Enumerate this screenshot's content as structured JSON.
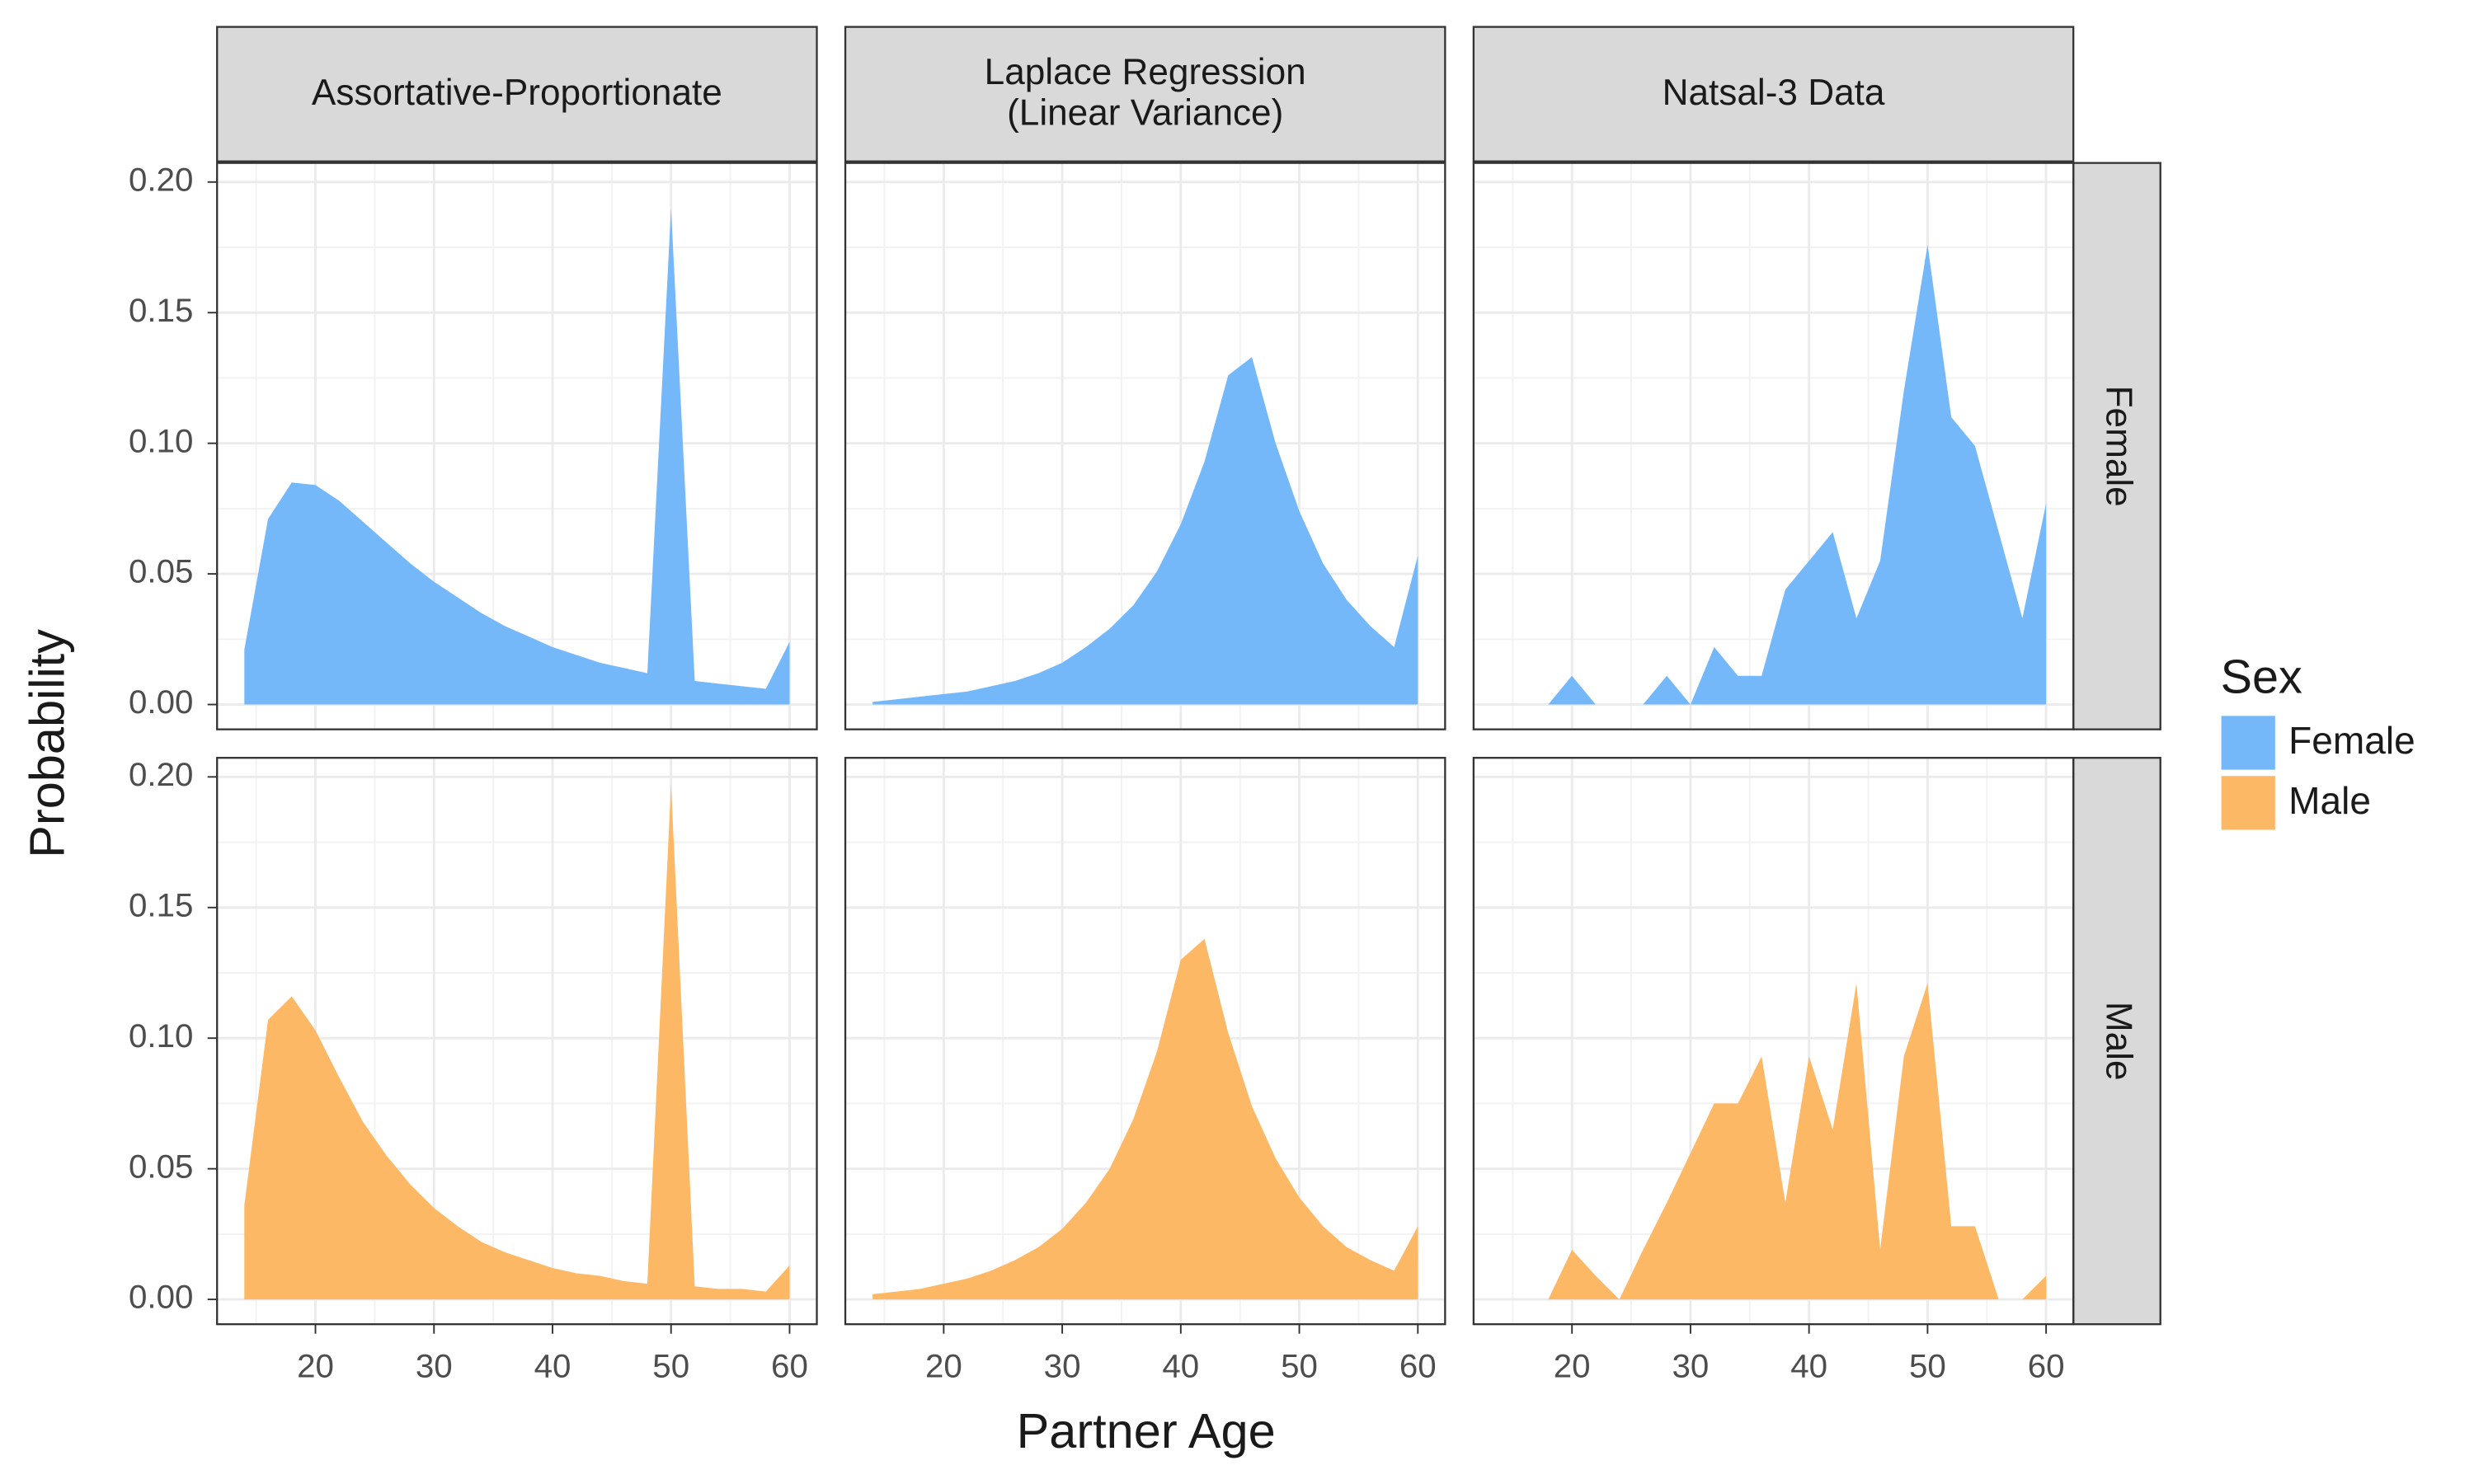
{
  "chart_data": {
    "type": "area",
    "xlabel": "Partner Age",
    "ylabel": "Probability",
    "legend_title": "Sex",
    "columns": [
      [
        "Assortative-Proportionate"
      ],
      [
        "Laplace Regression",
        "(Linear Variance)"
      ],
      [
        "Natsal-3 Data"
      ]
    ],
    "x": [
      14,
      16,
      18,
      20,
      22,
      24,
      26,
      28,
      30,
      32,
      34,
      36,
      38,
      40,
      42,
      44,
      46,
      48,
      50,
      52,
      54,
      56,
      58,
      60
    ],
    "xlim": [
      11.7,
      62.3
    ],
    "xticks": [
      20,
      30,
      40,
      50,
      60
    ],
    "ylim": [
      -0.0095,
      0.2073
    ],
    "yticks": [
      {
        "value": 0,
        "label": "0.00"
      },
      {
        "value": 0.05,
        "label": "0.05"
      },
      {
        "value": 0.1,
        "label": "0.10"
      },
      {
        "value": 0.15,
        "label": "0.15"
      },
      {
        "value": 0.2,
        "label": "0.20"
      }
    ],
    "grid": true,
    "minor_grid": true,
    "series": [
      {
        "name": "Female",
        "color": "#75b8fa",
        "values": [
          [
            0.021,
            0.071,
            0.085,
            0.084,
            0.078,
            0.07,
            0.062,
            0.054,
            0.047,
            0.041,
            0.035,
            0.03,
            0.026,
            0.022,
            0.019,
            0.016,
            0.014,
            0.012,
            0.19,
            0.009,
            0.008,
            0.007,
            0.006,
            0.024
          ],
          [
            0.001,
            0.002,
            0.003,
            0.004,
            0.005,
            0.007,
            0.009,
            0.012,
            0.016,
            0.022,
            0.029,
            0.038,
            0.051,
            0.069,
            0.093,
            0.126,
            0.133,
            0.1,
            0.074,
            0.054,
            0.04,
            0.03,
            0.022,
            0.057
          ],
          [
            null,
            null,
            0,
            0.011,
            0,
            0,
            0,
            0.011,
            0,
            0.022,
            0.011,
            0.011,
            0.044,
            0.055,
            0.066,
            0.033,
            0.055,
            0.12,
            0.176,
            0.11,
            0.099,
            0.066,
            0.033,
            0.077
          ]
        ]
      },
      {
        "name": "Male",
        "color": "#fdb866",
        "values": [
          [
            0.036,
            0.107,
            0.116,
            0.103,
            0.085,
            0.068,
            0.055,
            0.044,
            0.035,
            0.028,
            0.022,
            0.018,
            0.015,
            0.012,
            0.01,
            0.009,
            0.007,
            0.006,
            0.197,
            0.005,
            0.004,
            0.004,
            0.003,
            0.013
          ],
          [
            0.002,
            0.003,
            0.004,
            0.006,
            0.008,
            0.011,
            0.015,
            0.02,
            0.027,
            0.037,
            0.05,
            0.069,
            0.095,
            0.13,
            0.138,
            0.102,
            0.074,
            0.054,
            0.039,
            0.028,
            0.02,
            0.015,
            0.011,
            0.028
          ],
          [
            null,
            null,
            0,
            0.019,
            0.009,
            0,
            0.019,
            0.037,
            0.056,
            0.075,
            0.075,
            0.093,
            0.037,
            0.093,
            0.065,
            0.121,
            0.019,
            0.093,
            0.121,
            0.028,
            0.028,
            0,
            0,
            0.009
          ]
        ]
      }
    ]
  }
}
